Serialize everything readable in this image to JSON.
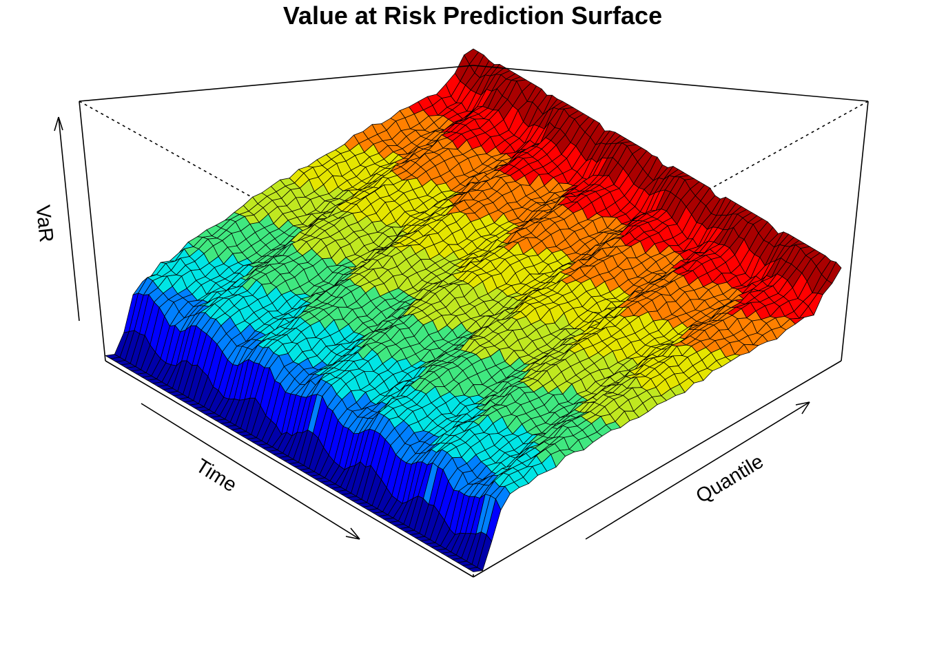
{
  "chart_data": {
    "type": "surface",
    "title": "Value at Risk Prediction Surface",
    "xlabel": "Time",
    "ylabel": "Quantile",
    "zlabel": "VaR",
    "colormap": [
      "#0000aa",
      "#0000ff",
      "#0080ff",
      "#00e5e5",
      "#40e880",
      "#c0e820",
      "#e5e500",
      "#ff8000",
      "#ff0000",
      "#aa0000"
    ],
    "tick_labels": "none",
    "box": "full",
    "grid": false,
    "rendering": "continuous surface; low VaR at low quantile (blue), rising toward high quantile (red); sharp dip at the lowest quantiles"
  }
}
